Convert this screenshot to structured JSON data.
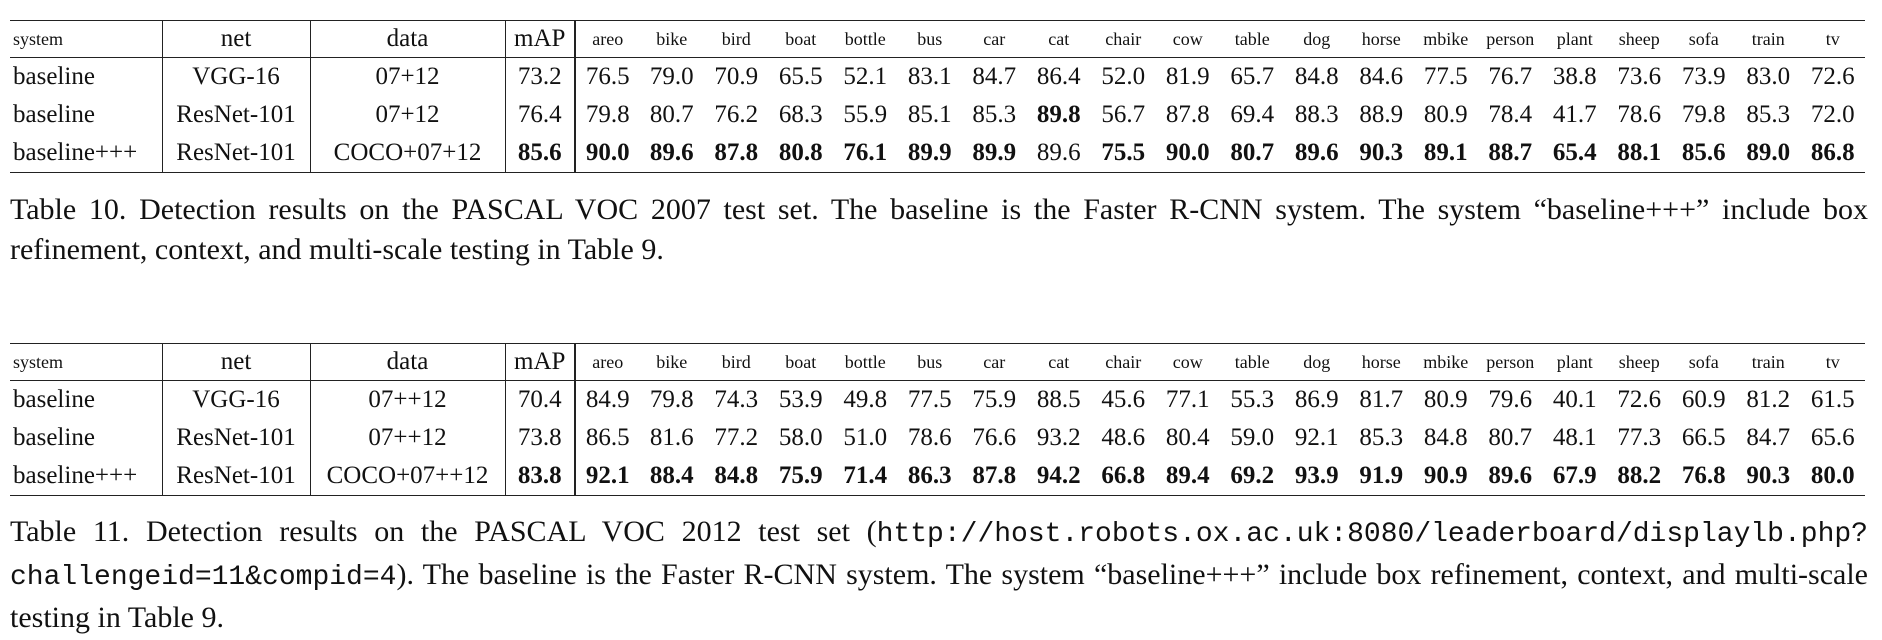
{
  "table10": {
    "headers": [
      "system",
      "net",
      "data",
      "mAP",
      "areo",
      "bike",
      "bird",
      "boat",
      "bottle",
      "bus",
      "car",
      "cat",
      "chair",
      "cow",
      "table",
      "dog",
      "horse",
      "mbike",
      "person",
      "plant",
      "sheep",
      "sofa",
      "train",
      "tv"
    ],
    "rows": [
      {
        "cells": [
          "baseline",
          "VGG-16",
          "07+12",
          "73.2",
          "76.5",
          "79.0",
          "70.9",
          "65.5",
          "52.1",
          "83.1",
          "84.7",
          "86.4",
          "52.0",
          "81.9",
          "65.7",
          "84.8",
          "84.6",
          "77.5",
          "76.7",
          "38.8",
          "73.6",
          "73.9",
          "83.0",
          "72.6"
        ],
        "bold": []
      },
      {
        "cells": [
          "baseline",
          "ResNet-101",
          "07+12",
          "76.4",
          "79.8",
          "80.7",
          "76.2",
          "68.3",
          "55.9",
          "85.1",
          "85.3",
          "89.8",
          "56.7",
          "87.8",
          "69.4",
          "88.3",
          "88.9",
          "80.9",
          "78.4",
          "41.7",
          "78.6",
          "79.8",
          "85.3",
          "72.0"
        ],
        "bold": [
          11
        ]
      },
      {
        "cells": [
          "baseline+++",
          "ResNet-101",
          "COCO+07+12",
          "85.6",
          "90.0",
          "89.6",
          "87.8",
          "80.8",
          "76.1",
          "89.9",
          "89.9",
          "89.6",
          "75.5",
          "90.0",
          "80.7",
          "89.6",
          "90.3",
          "89.1",
          "88.7",
          "65.4",
          "88.1",
          "85.6",
          "89.0",
          "86.8"
        ],
        "bold": [
          3,
          4,
          5,
          6,
          7,
          8,
          9,
          10,
          12,
          13,
          14,
          15,
          16,
          17,
          18,
          19,
          20,
          21,
          22,
          23
        ]
      }
    ],
    "caption": "Table 10. Detection results on the PASCAL VOC 2007 test set.  The baseline is the Faster R-CNN system.  The system “baseline+++” include box refinement, context, and multi-scale testing in Table 9."
  },
  "table11": {
    "headers": [
      "system",
      "net",
      "data",
      "mAP",
      "areo",
      "bike",
      "bird",
      "boat",
      "bottle",
      "bus",
      "car",
      "cat",
      "chair",
      "cow",
      "table",
      "dog",
      "horse",
      "mbike",
      "person",
      "plant",
      "sheep",
      "sofa",
      "train",
      "tv"
    ],
    "rows": [
      {
        "cells": [
          "baseline",
          "VGG-16",
          "07++12",
          "70.4",
          "84.9",
          "79.8",
          "74.3",
          "53.9",
          "49.8",
          "77.5",
          "75.9",
          "88.5",
          "45.6",
          "77.1",
          "55.3",
          "86.9",
          "81.7",
          "80.9",
          "79.6",
          "40.1",
          "72.6",
          "60.9",
          "81.2",
          "61.5"
        ],
        "bold": []
      },
      {
        "cells": [
          "baseline",
          "ResNet-101",
          "07++12",
          "73.8",
          "86.5",
          "81.6",
          "77.2",
          "58.0",
          "51.0",
          "78.6",
          "76.6",
          "93.2",
          "48.6",
          "80.4",
          "59.0",
          "92.1",
          "85.3",
          "84.8",
          "80.7",
          "48.1",
          "77.3",
          "66.5",
          "84.7",
          "65.6"
        ],
        "bold": []
      },
      {
        "cells": [
          "baseline+++",
          "ResNet-101",
          "COCO+07++12",
          "83.8",
          "92.1",
          "88.4",
          "84.8",
          "75.9",
          "71.4",
          "86.3",
          "87.8",
          "94.2",
          "66.8",
          "89.4",
          "69.2",
          "93.9",
          "91.9",
          "90.9",
          "89.6",
          "67.9",
          "88.2",
          "76.8",
          "90.3",
          "80.0"
        ],
        "bold": [
          3,
          4,
          5,
          6,
          7,
          8,
          9,
          10,
          11,
          12,
          13,
          14,
          15,
          16,
          17,
          18,
          19,
          20,
          21,
          22,
          23
        ]
      }
    ],
    "caption_pre": "Table 11. Detection results on the PASCAL VOC 2012 test set (",
    "caption_url": "http://host.robots.ox.ac.uk:8080/leaderboard/displaylb.php?challengeid=11&compid=4",
    "caption_post": ").  The baseline is the Faster R-CNN system.  The system “baseline+++” include box refinement, context, and multi-scale testing in Table 9."
  }
}
